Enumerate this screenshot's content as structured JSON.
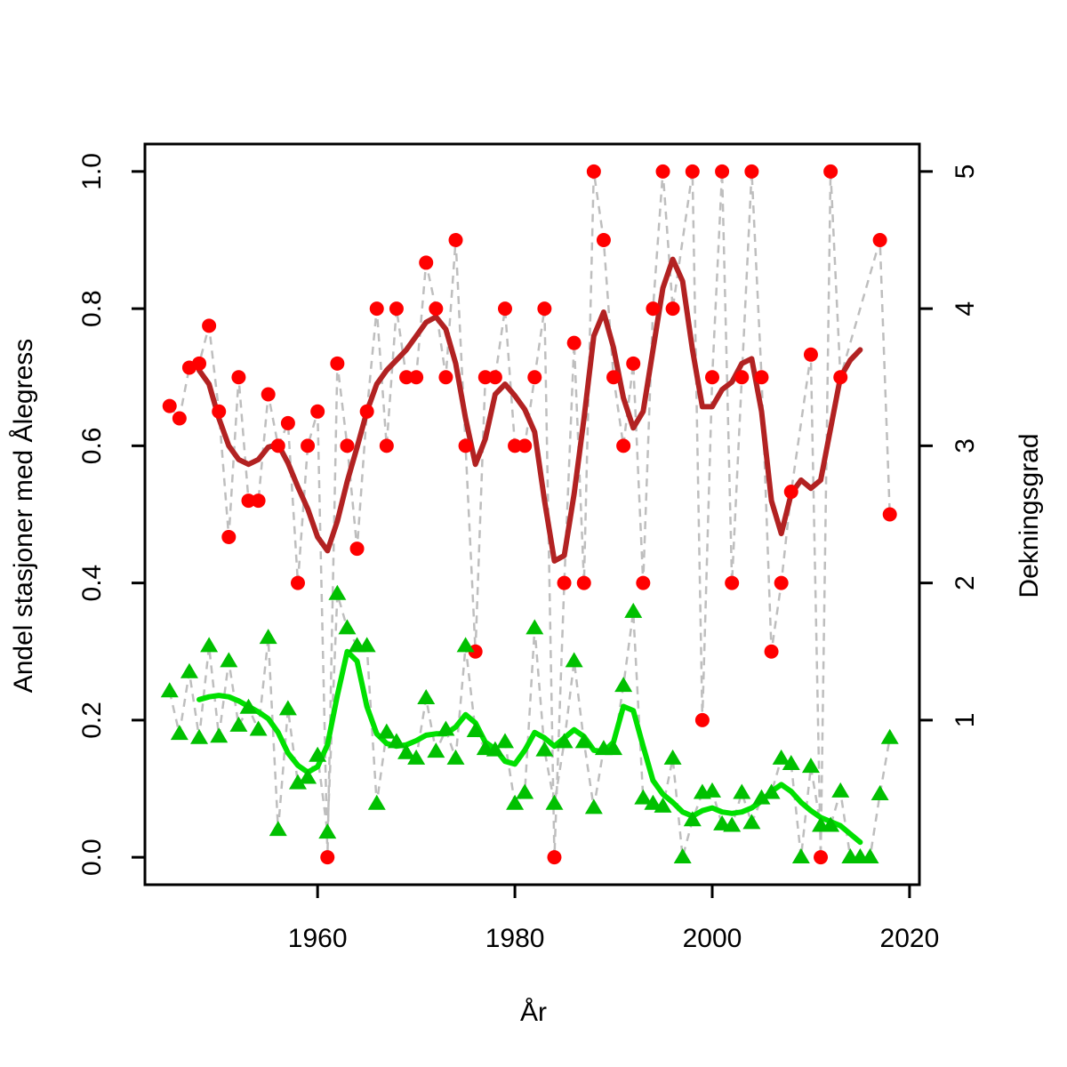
{
  "chart_data": {
    "type": "scatter",
    "xlabel": "År",
    "ylabel_left": "Andel stasjoner med Ålegress",
    "ylabel_right": "Dekningsgrad",
    "xlim": [
      1942.5,
      2021
    ],
    "ylim_left": [
      -0.04,
      1.04
    ],
    "ylim_right": [
      -0.2,
      5.2
    ],
    "x_ticks": [
      "1960",
      "1980",
      "2000",
      "2020"
    ],
    "y_left_ticks": [
      "0.0",
      "0.2",
      "0.4",
      "0.6",
      "0.8",
      "1.0"
    ],
    "y_right_ticks": [
      "1",
      "2",
      "3",
      "4",
      "5"
    ],
    "grid": false,
    "colors": {
      "points_left": "#ff0000",
      "smooth_left": "#b22222",
      "points_right": "#00c000",
      "smooth_right": "#00e000",
      "connector": "#bebebe"
    },
    "series": [
      {
        "axis": "left",
        "marker": "circle",
        "points": [
          [
            1945,
            0.658
          ],
          [
            1946,
            0.64
          ],
          [
            1947,
            0.714
          ],
          [
            1948,
            0.72
          ],
          [
            1949,
            0.775
          ],
          [
            1950,
            0.65
          ],
          [
            1951,
            0.467
          ],
          [
            1952,
            0.7
          ],
          [
            1953,
            0.52
          ],
          [
            1954,
            0.52
          ],
          [
            1955,
            0.675
          ],
          [
            1956,
            0.6
          ],
          [
            1957,
            0.633
          ],
          [
            1958,
            0.4
          ],
          [
            1959,
            0.6
          ],
          [
            1960,
            0.65
          ],
          [
            1961,
            0.0
          ],
          [
            1962,
            0.72
          ],
          [
            1963,
            0.6
          ],
          [
            1964,
            0.45
          ],
          [
            1965,
            0.65
          ],
          [
            1966,
            0.8
          ],
          [
            1967,
            0.6
          ],
          [
            1968,
            0.8
          ],
          [
            1969,
            0.7
          ],
          [
            1970,
            0.7
          ],
          [
            1971,
            0.867
          ],
          [
            1972,
            0.8
          ],
          [
            1973,
            0.7
          ],
          [
            1974,
            0.9
          ],
          [
            1975,
            0.6
          ],
          [
            1976,
            0.3
          ],
          [
            1977,
            0.7
          ],
          [
            1978,
            0.7
          ],
          [
            1979,
            0.8
          ],
          [
            1980,
            0.6
          ],
          [
            1981,
            0.6
          ],
          [
            1982,
            0.7
          ],
          [
            1983,
            0.8
          ],
          [
            1984,
            0.0
          ],
          [
            1985,
            0.4
          ],
          [
            1986,
            0.75
          ],
          [
            1987,
            0.4
          ],
          [
            1988,
            1.0
          ],
          [
            1989,
            0.9
          ],
          [
            1990,
            0.7
          ],
          [
            1991,
            0.6
          ],
          [
            1992,
            0.72
          ],
          [
            1993,
            0.4
          ],
          [
            1994,
            0.8
          ],
          [
            1995,
            1.0
          ],
          [
            1996,
            0.8
          ],
          [
            1998,
            1.0
          ],
          [
            1999,
            0.2
          ],
          [
            2000,
            0.7
          ],
          [
            2001,
            1.0
          ],
          [
            2002,
            0.4
          ],
          [
            2003,
            0.7
          ],
          [
            2004,
            1.0
          ],
          [
            2005,
            0.7
          ],
          [
            2006,
            0.3
          ],
          [
            2007,
            0.4
          ],
          [
            2008,
            0.533
          ],
          [
            2010,
            0.733
          ],
          [
            2011,
            0.0
          ],
          [
            2012,
            1.0
          ],
          [
            2013,
            0.7
          ],
          [
            2017,
            0.9
          ],
          [
            2018,
            0.5
          ]
        ],
        "smooth": [
          [
            1948,
            0.71
          ],
          [
            1949,
            0.69
          ],
          [
            1950,
            0.64
          ],
          [
            1951,
            0.6
          ],
          [
            1952,
            0.58
          ],
          [
            1953,
            0.573
          ],
          [
            1954,
            0.58
          ],
          [
            1955,
            0.598
          ],
          [
            1956,
            0.602
          ],
          [
            1957,
            0.575
          ],
          [
            1958,
            0.54
          ],
          [
            1959,
            0.508
          ],
          [
            1960,
            0.467
          ],
          [
            1961,
            0.447
          ],
          [
            1962,
            0.49
          ],
          [
            1963,
            0.548
          ],
          [
            1964,
            0.598
          ],
          [
            1965,
            0.65
          ],
          [
            1966,
            0.69
          ],
          [
            1967,
            0.71
          ],
          [
            1968,
            0.725
          ],
          [
            1969,
            0.74
          ],
          [
            1970,
            0.76
          ],
          [
            1971,
            0.78
          ],
          [
            1972,
            0.788
          ],
          [
            1973,
            0.77
          ],
          [
            1974,
            0.72
          ],
          [
            1975,
            0.64
          ],
          [
            1976,
            0.573
          ],
          [
            1977,
            0.61
          ],
          [
            1978,
            0.675
          ],
          [
            1979,
            0.69
          ],
          [
            1980,
            0.673
          ],
          [
            1981,
            0.653
          ],
          [
            1982,
            0.62
          ],
          [
            1983,
            0.52
          ],
          [
            1984,
            0.432
          ],
          [
            1985,
            0.44
          ],
          [
            1986,
            0.53
          ],
          [
            1987,
            0.64
          ],
          [
            1988,
            0.76
          ],
          [
            1989,
            0.795
          ],
          [
            1990,
            0.743
          ],
          [
            1991,
            0.67
          ],
          [
            1992,
            0.626
          ],
          [
            1993,
            0.65
          ],
          [
            1994,
            0.74
          ],
          [
            1995,
            0.83
          ],
          [
            1996,
            0.872
          ],
          [
            1997,
            0.84
          ],
          [
            1998,
            0.74
          ],
          [
            1999,
            0.657
          ],
          [
            2000,
            0.657
          ],
          [
            2001,
            0.682
          ],
          [
            2002,
            0.693
          ],
          [
            2003,
            0.72
          ],
          [
            2004,
            0.727
          ],
          [
            2005,
            0.65
          ],
          [
            2006,
            0.52
          ],
          [
            2007,
            0.472
          ],
          [
            2008,
            0.53
          ],
          [
            2009,
            0.55
          ],
          [
            2010,
            0.538
          ],
          [
            2011,
            0.55
          ],
          [
            2012,
            0.625
          ],
          [
            2013,
            0.7
          ],
          [
            2014,
            0.725
          ],
          [
            2015,
            0.74
          ]
        ]
      },
      {
        "axis": "right",
        "marker": "triangle",
        "points": [
          [
            1945,
            1.21
          ],
          [
            1946,
            0.9
          ],
          [
            1947,
            1.35
          ],
          [
            1948,
            0.87
          ],
          [
            1949,
            1.54
          ],
          [
            1950,
            0.88
          ],
          [
            1951,
            1.43
          ],
          [
            1952,
            0.96
          ],
          [
            1953,
            1.09
          ],
          [
            1954,
            0.93
          ],
          [
            1955,
            1.6
          ],
          [
            1956,
            0.2
          ],
          [
            1957,
            1.08
          ],
          [
            1958,
            0.54
          ],
          [
            1959,
            0.58
          ],
          [
            1960,
            0.74
          ],
          [
            1961,
            0.18
          ],
          [
            1962,
            1.92
          ],
          [
            1963,
            1.67
          ],
          [
            1964,
            1.54
          ],
          [
            1965,
            1.54
          ],
          [
            1966,
            0.39
          ],
          [
            1967,
            0.91
          ],
          [
            1968,
            0.84
          ],
          [
            1969,
            0.76
          ],
          [
            1970,
            0.72
          ],
          [
            1971,
            1.16
          ],
          [
            1972,
            0.77
          ],
          [
            1973,
            0.93
          ],
          [
            1974,
            0.72
          ],
          [
            1975,
            1.54
          ],
          [
            1976,
            0.92
          ],
          [
            1977,
            0.79
          ],
          [
            1978,
            0.78
          ],
          [
            1979,
            0.84
          ],
          [
            1980,
            0.39
          ],
          [
            1981,
            0.47
          ],
          [
            1982,
            1.67
          ],
          [
            1983,
            0.78
          ],
          [
            1984,
            0.39
          ],
          [
            1985,
            0.84
          ],
          [
            1986,
            1.43
          ],
          [
            1987,
            0.84
          ],
          [
            1988,
            0.36
          ],
          [
            1989,
            0.79
          ],
          [
            1990,
            0.79
          ],
          [
            1991,
            1.25
          ],
          [
            1992,
            1.79
          ],
          [
            1993,
            0.43
          ],
          [
            1994,
            0.39
          ],
          [
            1995,
            0.37
          ],
          [
            1996,
            0.72
          ],
          [
            1997,
            0.0
          ],
          [
            1998,
            0.27
          ],
          [
            1999,
            0.47
          ],
          [
            2000,
            0.48
          ],
          [
            2001,
            0.24
          ],
          [
            2002,
            0.23
          ],
          [
            2003,
            0.47
          ],
          [
            2004,
            0.25
          ],
          [
            2005,
            0.43
          ],
          [
            2006,
            0.47
          ],
          [
            2007,
            0.72
          ],
          [
            2008,
            0.68
          ],
          [
            2009,
            0.0
          ],
          [
            2010,
            0.66
          ],
          [
            2011,
            0.23
          ],
          [
            2012,
            0.23
          ],
          [
            2013,
            0.48
          ],
          [
            2014,
            0.0
          ],
          [
            2015,
            0.0
          ],
          [
            2016,
            0.0
          ],
          [
            2017,
            0.46
          ],
          [
            2018,
            0.87
          ]
        ],
        "smooth": [
          [
            1948,
            1.15
          ],
          [
            1949,
            1.17
          ],
          [
            1950,
            1.18
          ],
          [
            1951,
            1.17
          ],
          [
            1952,
            1.14
          ],
          [
            1953,
            1.1
          ],
          [
            1954,
            1.06
          ],
          [
            1955,
            1.01
          ],
          [
            1956,
            0.91
          ],
          [
            1957,
            0.76
          ],
          [
            1958,
            0.67
          ],
          [
            1959,
            0.62
          ],
          [
            1960,
            0.66
          ],
          [
            1961,
            0.82
          ],
          [
            1962,
            1.18
          ],
          [
            1963,
            1.5
          ],
          [
            1964,
            1.43
          ],
          [
            1965,
            1.1
          ],
          [
            1966,
            0.9
          ],
          [
            1967,
            0.83
          ],
          [
            1968,
            0.81
          ],
          [
            1969,
            0.82
          ],
          [
            1970,
            0.85
          ],
          [
            1971,
            0.89
          ],
          [
            1972,
            0.9
          ],
          [
            1973,
            0.9
          ],
          [
            1974,
            0.95
          ],
          [
            1975,
            1.04
          ],
          [
            1976,
            0.98
          ],
          [
            1977,
            0.84
          ],
          [
            1978,
            0.79
          ],
          [
            1979,
            0.7
          ],
          [
            1980,
            0.68
          ],
          [
            1981,
            0.78
          ],
          [
            1982,
            0.91
          ],
          [
            1983,
            0.87
          ],
          [
            1984,
            0.81
          ],
          [
            1985,
            0.87
          ],
          [
            1986,
            0.93
          ],
          [
            1987,
            0.88
          ],
          [
            1988,
            0.78
          ],
          [
            1989,
            0.77
          ],
          [
            1990,
            0.84
          ],
          [
            1991,
            1.1
          ],
          [
            1992,
            1.07
          ],
          [
            1993,
            0.81
          ],
          [
            1994,
            0.56
          ],
          [
            1995,
            0.46
          ],
          [
            1996,
            0.4
          ],
          [
            1997,
            0.33
          ],
          [
            1998,
            0.3
          ],
          [
            1999,
            0.34
          ],
          [
            2000,
            0.36
          ],
          [
            2001,
            0.33
          ],
          [
            2002,
            0.32
          ],
          [
            2003,
            0.33
          ],
          [
            2004,
            0.36
          ],
          [
            2005,
            0.41
          ],
          [
            2006,
            0.48
          ],
          [
            2007,
            0.53
          ],
          [
            2008,
            0.48
          ],
          [
            2009,
            0.4
          ],
          [
            2010,
            0.34
          ],
          [
            2011,
            0.29
          ],
          [
            2012,
            0.26
          ],
          [
            2013,
            0.23
          ],
          [
            2014,
            0.17
          ],
          [
            2015,
            0.11
          ]
        ]
      }
    ]
  }
}
